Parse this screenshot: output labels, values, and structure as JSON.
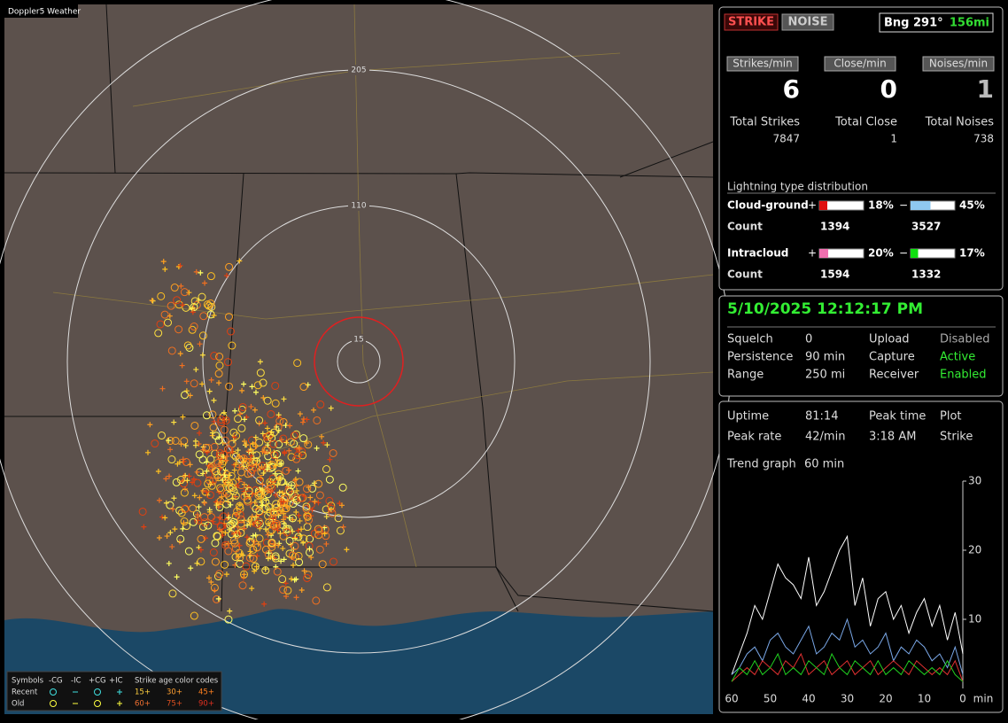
{
  "map": {
    "title": "Doppler5 Weather",
    "rings": [
      "205",
      "110",
      "15"
    ],
    "legend": {
      "header": [
        "Symbols",
        "-CG",
        "-IC",
        "+CG",
        "+IC",
        "Strike age color codes"
      ],
      "rows": [
        {
          "label": "Recent",
          "ages": [
            "15+",
            "30+",
            "45+"
          ]
        },
        {
          "label": "Old",
          "ages": [
            "60+",
            "75+",
            "90+"
          ]
        }
      ]
    }
  },
  "status": {
    "strike": "STRIKE",
    "noise": "NOISE",
    "bearing": "Bng 291°",
    "distance": "156mi"
  },
  "rates": [
    {
      "label": "Strikes/min",
      "value": 6
    },
    {
      "label": "Close/min",
      "value": 0
    },
    {
      "label": "Noises/min",
      "value": 1
    }
  ],
  "totals": [
    {
      "label": "Total Strikes",
      "value": 7847
    },
    {
      "label": "Total Close",
      "value": 1
    },
    {
      "label": "Total Noises",
      "value": 738
    }
  ],
  "distribution": {
    "title": "Lightning type distribution",
    "count_label": "Count",
    "rows": [
      {
        "label": "Cloud-ground",
        "positive": {
          "sign": "+",
          "percent": 18,
          "percent_label": "18%",
          "count": 1394,
          "color": "#e01010"
        },
        "negative": {
          "sign": "−",
          "percent": 45,
          "percent_label": "45%",
          "count": 3527,
          "color": "#8fc8f0"
        }
      },
      {
        "label": "Intracloud",
        "positive": {
          "sign": "+",
          "percent": 20,
          "percent_label": "20%",
          "count": 1594,
          "color": "#f070b0"
        },
        "negative": {
          "sign": "−",
          "percent": 17,
          "percent_label": "17%",
          "count": 1332,
          "color": "#10e010"
        }
      }
    ]
  },
  "datetime": "5/10/2025 12:12:17 PM",
  "settings": [
    [
      "Squelch",
      "0",
      "Upload",
      "Disabled"
    ],
    [
      "Persistence",
      "90 min",
      "Capture",
      "Active"
    ],
    [
      "Range",
      "250 mi",
      "Receiver",
      "Enabled"
    ]
  ],
  "stats": [
    [
      "Uptime",
      "81:14",
      "Peak time",
      "Plot"
    ],
    [
      "Peak rate",
      "42/min",
      "3:18 AM",
      "Strike"
    ]
  ],
  "trend": {
    "label": "Trend graph",
    "value": "60 min"
  },
  "chart_data": {
    "type": "line",
    "x": [
      60,
      58,
      56,
      54,
      52,
      50,
      48,
      46,
      44,
      42,
      40,
      38,
      36,
      34,
      32,
      30,
      28,
      26,
      24,
      22,
      20,
      18,
      16,
      14,
      12,
      10,
      8,
      6,
      4,
      2,
      0
    ],
    "xlim": [
      60,
      0
    ],
    "xticks": [
      60,
      50,
      40,
      30,
      20,
      10,
      0
    ],
    "xlabel": "min",
    "ylim": [
      0,
      30
    ],
    "yticks": [
      10,
      20,
      30
    ],
    "series": [
      {
        "color": "#ffffff",
        "values": [
          2,
          5,
          8,
          12,
          10,
          14,
          18,
          16,
          15,
          13,
          19,
          12,
          14,
          17,
          20,
          22,
          12,
          16,
          9,
          13,
          14,
          10,
          12,
          8,
          11,
          13,
          9,
          12,
          7,
          11,
          5
        ]
      },
      {
        "color": "#7aa8e8",
        "values": [
          2,
          3,
          5,
          6,
          4,
          7,
          8,
          6,
          5,
          7,
          9,
          5,
          6,
          8,
          7,
          10,
          6,
          7,
          5,
          6,
          8,
          4,
          6,
          5,
          7,
          6,
          4,
          5,
          3,
          6,
          2
        ]
      },
      {
        "color": "#e03030",
        "values": [
          1,
          2,
          3,
          2,
          4,
          3,
          2,
          4,
          3,
          5,
          2,
          3,
          4,
          2,
          3,
          4,
          2,
          3,
          4,
          2,
          3,
          4,
          3,
          2,
          4,
          3,
          2,
          3,
          2,
          4,
          1
        ]
      },
      {
        "color": "#20d020",
        "values": [
          1,
          3,
          2,
          4,
          2,
          3,
          5,
          2,
          3,
          2,
          4,
          3,
          2,
          5,
          3,
          2,
          4,
          3,
          2,
          4,
          2,
          3,
          2,
          4,
          3,
          2,
          3,
          2,
          4,
          2,
          1
        ]
      }
    ]
  }
}
